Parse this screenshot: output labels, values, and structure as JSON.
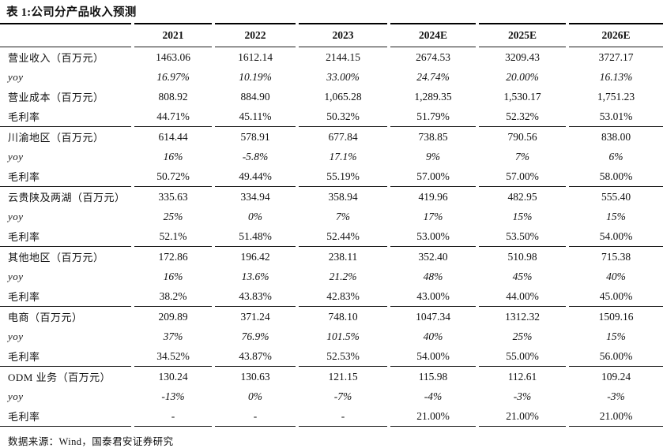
{
  "title": "表 1:公司分产品收入预测",
  "source": "数据来源：Wind，国泰君安证券研究",
  "table": {
    "columns": [
      "2021",
      "2022",
      "2023",
      "2024E",
      "2025E",
      "2026E"
    ],
    "rows": [
      {
        "label": "营业收入（百万元）",
        "italic": false,
        "section_end": false,
        "values": [
          "1463.06",
          "1612.14",
          "2144.15",
          "2674.53",
          "3209.43",
          "3727.17"
        ]
      },
      {
        "label": "yoy",
        "italic": true,
        "section_end": false,
        "values": [
          "16.97%",
          "10.19%",
          "33.00%",
          "24.74%",
          "20.00%",
          "16.13%"
        ]
      },
      {
        "label": "营业成本（百万元）",
        "italic": false,
        "section_end": false,
        "values": [
          "808.92",
          "884.90",
          "1,065.28",
          "1,289.35",
          "1,530.17",
          "1,751.23"
        ]
      },
      {
        "label": "毛利率",
        "italic": false,
        "section_end": true,
        "values": [
          "44.71%",
          "45.11%",
          "50.32%",
          "51.79%",
          "52.32%",
          "53.01%"
        ]
      },
      {
        "label": "川渝地区（百万元）",
        "italic": false,
        "section_end": false,
        "values": [
          "614.44",
          "578.91",
          "677.84",
          "738.85",
          "790.56",
          "838.00"
        ]
      },
      {
        "label": "yoy",
        "italic": true,
        "section_end": false,
        "values": [
          "16%",
          "-5.8%",
          "17.1%",
          "9%",
          "7%",
          "6%"
        ]
      },
      {
        "label": "毛利率",
        "italic": false,
        "section_end": true,
        "values": [
          "50.72%",
          "49.44%",
          "55.19%",
          "57.00%",
          "57.00%",
          "58.00%"
        ]
      },
      {
        "label": "云贵陕及两湖（百万元）",
        "italic": false,
        "section_end": false,
        "values": [
          "335.63",
          "334.94",
          "358.94",
          "419.96",
          "482.95",
          "555.40"
        ]
      },
      {
        "label": "yoy",
        "italic": true,
        "section_end": false,
        "values": [
          "25%",
          "0%",
          "7%",
          "17%",
          "15%",
          "15%"
        ]
      },
      {
        "label": "毛利率",
        "italic": false,
        "section_end": true,
        "values": [
          "52.1%",
          "51.48%",
          "52.44%",
          "53.00%",
          "53.50%",
          "54.00%"
        ]
      },
      {
        "label": "其他地区（百万元）",
        "italic": false,
        "section_end": false,
        "values": [
          "172.86",
          "196.42",
          "238.11",
          "352.40",
          "510.98",
          "715.38"
        ]
      },
      {
        "label": "yoy",
        "italic": true,
        "section_end": false,
        "values": [
          "16%",
          "13.6%",
          "21.2%",
          "48%",
          "45%",
          "40%"
        ]
      },
      {
        "label": "毛利率",
        "italic": false,
        "section_end": true,
        "values": [
          "38.2%",
          "43.83%",
          "42.83%",
          "43.00%",
          "44.00%",
          "45.00%"
        ]
      },
      {
        "label": "电商（百万元）",
        "italic": false,
        "section_end": false,
        "values": [
          "209.89",
          "371.24",
          "748.10",
          "1047.34",
          "1312.32",
          "1509.16"
        ]
      },
      {
        "label": "yoy",
        "italic": true,
        "section_end": false,
        "values": [
          "37%",
          "76.9%",
          "101.5%",
          "40%",
          "25%",
          "15%"
        ]
      },
      {
        "label": "毛利率",
        "italic": false,
        "section_end": true,
        "values": [
          "34.52%",
          "43.87%",
          "52.53%",
          "54.00%",
          "55.00%",
          "56.00%"
        ]
      },
      {
        "label": "ODM 业务（百万元）",
        "italic": false,
        "section_end": false,
        "values": [
          "130.24",
          "130.63",
          "121.15",
          "115.98",
          "112.61",
          "109.24"
        ]
      },
      {
        "label": "yoy",
        "italic": true,
        "section_end": false,
        "values": [
          "-13%",
          "0%",
          "-7%",
          "-4%",
          "-3%",
          "-3%"
        ]
      },
      {
        "label": "毛利率",
        "italic": false,
        "section_end": true,
        "values": [
          "-",
          "-",
          "-",
          "21.00%",
          "21.00%",
          "21.00%"
        ]
      }
    ]
  }
}
